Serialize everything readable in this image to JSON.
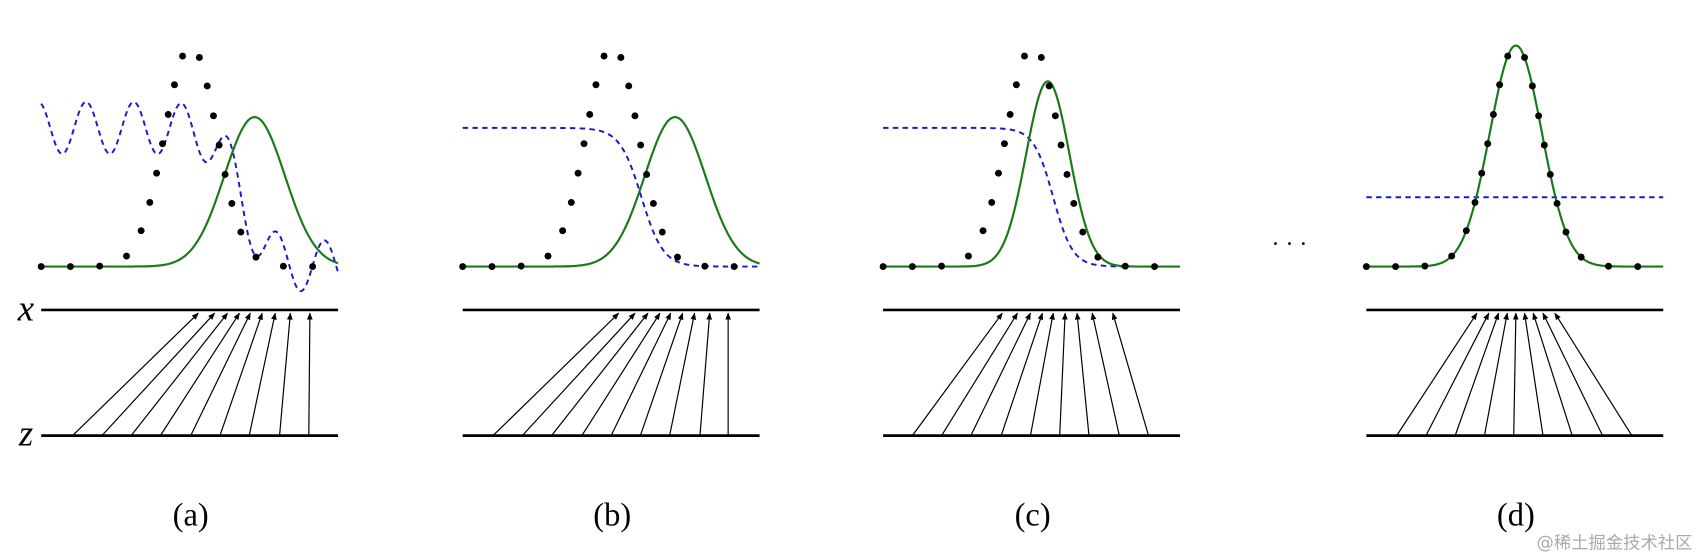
{
  "labels": {
    "x": "x",
    "z": "z"
  },
  "panels": [
    {
      "caption": "(a)"
    },
    {
      "caption": "(b)"
    },
    {
      "caption": "(c)"
    },
    {
      "caption": "(d)"
    }
  ],
  "ellipsis": "· · ·",
  "watermark": "@稀土掘金技术社区"
}
